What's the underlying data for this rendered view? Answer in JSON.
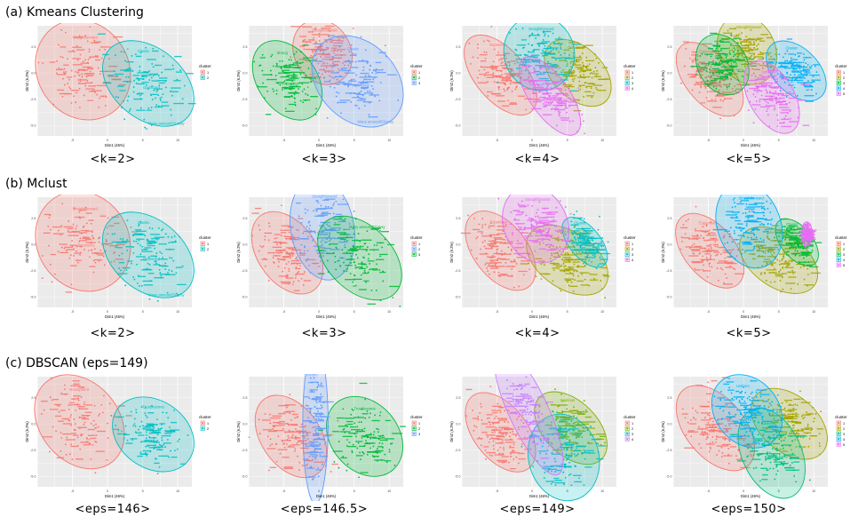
{
  "sections": [
    {
      "title": "(a) Kmeans Clustering",
      "panels": [
        {
          "caption": "<k=2>",
          "legend": [
            "1",
            "2"
          ]
        },
        {
          "caption": "<k=3>",
          "legend": [
            "1",
            "2",
            "3"
          ]
        },
        {
          "caption": "<k=4>",
          "legend": [
            "1",
            "2",
            "3",
            "4"
          ]
        },
        {
          "caption": "<k=5>",
          "legend": [
            "1",
            "2",
            "3",
            "4",
            "5"
          ]
        }
      ]
    },
    {
      "title": "(b) Mclust",
      "panels": [
        {
          "caption": "<k=2>",
          "legend": [
            "1",
            "2"
          ]
        },
        {
          "caption": "<k=3>",
          "legend": [
            "1",
            "2",
            "3"
          ]
        },
        {
          "caption": "<k=4>",
          "legend": [
            "1",
            "2",
            "3",
            "4"
          ]
        },
        {
          "caption": "<k=5>",
          "legend": [
            "1",
            "2",
            "3",
            "4",
            "5"
          ]
        }
      ]
    },
    {
      "title": "(c) DBSCAN (eps=149)",
      "panels": [
        {
          "caption": "<eps=146>",
          "legend": [
            "1",
            "2"
          ]
        },
        {
          "caption": "<eps=146.5>",
          "legend": [
            "1",
            "2",
            "3"
          ]
        },
        {
          "caption": "<eps=149>",
          "legend": [
            "1",
            "2",
            "3",
            "4"
          ]
        },
        {
          "caption": "<eps=150>",
          "legend": [
            "1",
            "2",
            "3",
            "4",
            "5"
          ]
        }
      ]
    }
  ],
  "common": {
    "xlabel": "Dim1 (46%)",
    "ylabel": "Dim2 (6.2%)",
    "legend_title": "cluster",
    "xticks": [
      "-5",
      "0",
      "5",
      "10"
    ],
    "yticks": [
      "2.5",
      "0.0",
      "-2.5",
      "-5.0"
    ],
    "xlim": [
      -10,
      12
    ],
    "ylim": [
      -6,
      4.5
    ],
    "grid": true,
    "legend_position": "right"
  },
  "colors": [
    "#f8766d",
    "#7cae00",
    "#00bfc4",
    "#c77cff",
    "#619cff",
    "#00ba38",
    "#a3a500",
    "#00b0f6",
    "#e76bf3"
  ],
  "chart_data": {
    "type": "scatter",
    "note_labels": [
      "Straightforward",
      "Expensive",
      "Classic",
      "Many amount/Clumsy",
      "Optimized",
      "Uniform",
      "Strong",
      "Atmospheric",
      "Troublesome",
      "Cautious"
    ],
    "panels": [
      {
        "section": 0,
        "k": 2,
        "clusters": [
          {
            "id": "1",
            "color": "#f8766d",
            "cx": -3.5,
            "cy": 0.3,
            "rx": 6.5,
            "ry": 2.6,
            "angle": 33,
            "labels": [
              "Straightforward",
              "Expensive"
            ]
          },
          {
            "id": "2",
            "color": "#00bfc4",
            "cx": 5.8,
            "cy": -1.0,
            "rx": 5.0,
            "ry": 2.6,
            "angle": 50,
            "labels": [
              "Classic",
              "Optimized",
              "Many amount/Clumsy"
            ]
          }
        ]
      },
      {
        "section": 0,
        "k": 3,
        "clusters": [
          {
            "id": "1",
            "color": "#f8766d",
            "cx": 0.5,
            "cy": 2.0,
            "rx": 4.0,
            "ry": 1.7,
            "angle": 30,
            "labels": [
              "Straightforward"
            ]
          },
          {
            "id": "2",
            "color": "#00ba38",
            "cx": -4.5,
            "cy": -0.7,
            "rx": 4.2,
            "ry": 2.2,
            "angle": 35,
            "labels": [
              "Strong",
              "Expensive"
            ]
          },
          {
            "id": "3",
            "color": "#619cff",
            "cx": 5.5,
            "cy": -0.8,
            "rx": 5.5,
            "ry": 2.6,
            "angle": 45,
            "labels": [
              "Classic",
              "Optimized",
              "Many amount/Clumsy"
            ]
          }
        ]
      },
      {
        "section": 0,
        "k": 4,
        "clusters": [
          {
            "id": "1",
            "color": "#f8766d",
            "cx": -4.5,
            "cy": -0.2,
            "rx": 3.6,
            "ry": 2.4,
            "angle": 40,
            "labels": [
              "Expensive"
            ]
          },
          {
            "id": "2",
            "color": "#a3a500",
            "cx": 6.5,
            "cy": 0.0,
            "rx": 3.6,
            "ry": 2.0,
            "angle": 45,
            "labels": [
              "Classic"
            ]
          },
          {
            "id": "3",
            "color": "#00bfc4",
            "cx": 1.0,
            "cy": 1.9,
            "rx": 5.0,
            "ry": 1.9,
            "angle": 20,
            "labels": [
              "Straightforward"
            ]
          },
          {
            "id": "4",
            "color": "#e76bf3",
            "cx": 2.5,
            "cy": -2.2,
            "rx": 2.8,
            "ry": 2.3,
            "angle": 35,
            "labels": [
              "Optimized",
              "Many amount/Clumsy"
            ]
          }
        ]
      },
      {
        "section": 0,
        "k": 5,
        "clusters": [
          {
            "id": "1",
            "color": "#f8766d",
            "cx": -4.8,
            "cy": -0.6,
            "rx": 3.4,
            "ry": 2.2,
            "angle": 40,
            "labels": [
              "Expensive"
            ]
          },
          {
            "id": "2",
            "color": "#a3a500",
            "cx": 0.5,
            "cy": 2.2,
            "rx": 4.0,
            "ry": 1.8,
            "angle": 25,
            "labels": [
              "Straightforward"
            ]
          },
          {
            "id": "3",
            "color": "#00ba38",
            "cx": -3.0,
            "cy": 0.8,
            "rx": 3.5,
            "ry": 1.6,
            "angle": 30,
            "labels": []
          },
          {
            "id": "4",
            "color": "#00b0f6",
            "cx": 7.5,
            "cy": 0.2,
            "rx": 3.2,
            "ry": 1.8,
            "angle": 45,
            "labels": [
              "Classic"
            ]
          },
          {
            "id": "5",
            "color": "#e76bf3",
            "cx": 4.0,
            "cy": -2.3,
            "rx": 3.2,
            "ry": 2.0,
            "angle": 30,
            "labels": [
              "Optimized"
            ]
          }
        ]
      },
      {
        "section": 1,
        "k": 2,
        "clusters": [
          {
            "id": "1",
            "color": "#f8766d",
            "cx": -3.5,
            "cy": 0.3,
            "rx": 6.5,
            "ry": 2.6,
            "angle": 33,
            "labels": [
              "Straightforward",
              "Expensive"
            ]
          },
          {
            "id": "2",
            "color": "#00bfc4",
            "cx": 5.8,
            "cy": -1.0,
            "rx": 5.0,
            "ry": 2.6,
            "angle": 50,
            "labels": [
              "Classic",
              "Optimized",
              "Many amount/Clumsy"
            ]
          }
        ]
      },
      {
        "section": 1,
        "k": 3,
        "clusters": [
          {
            "id": "1",
            "color": "#f8766d",
            "cx": -4.5,
            "cy": -0.8,
            "rx": 4.2,
            "ry": 2.3,
            "angle": 35,
            "labels": []
          },
          {
            "id": "2",
            "color": "#619cff",
            "cx": 0.5,
            "cy": 1.5,
            "rx": 4.5,
            "ry": 2.6,
            "angle": 10,
            "labels": [
              "Straightforward",
              "Uniform"
            ]
          },
          {
            "id": "3",
            "color": "#00ba38",
            "cx": 5.8,
            "cy": -1.3,
            "rx": 4.6,
            "ry": 2.5,
            "angle": 45,
            "labels": [
              "Many amount/Clumsy"
            ]
          }
        ]
      },
      {
        "section": 1,
        "k": 4,
        "clusters": [
          {
            "id": "1",
            "color": "#f8766d",
            "cx": -4.5,
            "cy": -0.6,
            "rx": 3.8,
            "ry": 2.3,
            "angle": 38,
            "labels": [
              "Expensive"
            ]
          },
          {
            "id": "2",
            "color": "#a3a500",
            "cx": 5.0,
            "cy": -1.5,
            "rx": 4.0,
            "ry": 2.3,
            "angle": 55,
            "labels": [
              "Many amount/Clumsy"
            ]
          },
          {
            "id": "3",
            "color": "#00bfc4",
            "cx": 7.5,
            "cy": 0.2,
            "rx": 2.2,
            "ry": 1.5,
            "angle": 40,
            "labels": [
              "Classic"
            ]
          },
          {
            "id": "4",
            "color": "#e76bf3",
            "cx": 0.5,
            "cy": 1.9,
            "rx": 4.5,
            "ry": 2.0,
            "angle": 25,
            "labels": [
              "Straightforward"
            ]
          }
        ]
      },
      {
        "section": 1,
        "k": 5,
        "clusters": [
          {
            "id": "1",
            "color": "#f8766d",
            "cx": -4.8,
            "cy": -0.6,
            "rx": 3.6,
            "ry": 2.2,
            "angle": 40,
            "labels": [
              "Expensive"
            ]
          },
          {
            "id": "2",
            "color": "#a3a500",
            "cx": 5.0,
            "cy": -1.5,
            "rx": 3.8,
            "ry": 2.2,
            "angle": 55,
            "labels": [
              "Many amount/Clumsy"
            ]
          },
          {
            "id": "3",
            "color": "#00ba38",
            "cx": 7.6,
            "cy": 0.2,
            "rx": 2.2,
            "ry": 1.4,
            "angle": 40,
            "labels": [
              "Classic"
            ]
          },
          {
            "id": "4",
            "color": "#00b0f6",
            "cx": 0.8,
            "cy": 1.8,
            "rx": 4.5,
            "ry": 2.2,
            "angle": 20,
            "labels": [
              "Straightforward"
            ]
          },
          {
            "id": "5",
            "color": "#e76bf3",
            "cx": 9.0,
            "cy": 1.0,
            "rx": 0.8,
            "ry": 0.6,
            "angle": 0,
            "labels": []
          }
        ]
      },
      {
        "section": 2,
        "k": 2,
        "clusters": [
          {
            "id": "1",
            "color": "#f8766d",
            "cx": -4.0,
            "cy": 0.2,
            "rx": 5.6,
            "ry": 2.6,
            "angle": 40,
            "labels": [
              "Atmospheric"
            ]
          },
          {
            "id": "2",
            "color": "#00bfc4",
            "cx": 6.5,
            "cy": -1.0,
            "rx": 4.8,
            "ry": 2.2,
            "angle": 55,
            "labels": [
              "Troublesome"
            ]
          }
        ]
      },
      {
        "section": 2,
        "k": 3,
        "clusters": [
          {
            "id": "1",
            "color": "#f8766d",
            "cx": -4.0,
            "cy": -1.2,
            "rx": 4.2,
            "ry": 2.3,
            "angle": 35,
            "labels": []
          },
          {
            "id": "2",
            "color": "#00ba38",
            "cx": 6.5,
            "cy": -1.2,
            "rx": 4.8,
            "ry": 2.2,
            "angle": 40,
            "labels": [
              "Troublesome"
            ]
          },
          {
            "id": "3",
            "color": "#619cff",
            "cx": -0.5,
            "cy": 0.0,
            "rx": 1.8,
            "ry": 4.0,
            "angle": 0,
            "labels": [
              "Uniform"
            ]
          }
        ]
      },
      {
        "section": 2,
        "k": 4,
        "clusters": [
          {
            "id": "1",
            "color": "#f8766d",
            "cx": -4.5,
            "cy": -0.8,
            "rx": 3.8,
            "ry": 2.3,
            "angle": 38,
            "labels": []
          },
          {
            "id": "2",
            "color": "#7cae00",
            "cx": 5.5,
            "cy": -0.4,
            "rx": 3.8,
            "ry": 2.2,
            "angle": 45,
            "labels": [
              "Cautious"
            ]
          },
          {
            "id": "3",
            "color": "#00bfc4",
            "cx": 4.5,
            "cy": -3.2,
            "rx": 5.0,
            "ry": 2.2,
            "angle": 15,
            "labels": [
              "Troublesome"
            ]
          },
          {
            "id": "4",
            "color": "#c77cff",
            "cx": -0.5,
            "cy": 1.2,
            "rx": 2.8,
            "ry": 3.5,
            "angle": 25,
            "labels": [
              "Uniform"
            ]
          }
        ]
      },
      {
        "section": 2,
        "k": 5,
        "clusters": [
          {
            "id": "1",
            "color": "#f8766d",
            "cx": -4.0,
            "cy": -0.4,
            "rx": 4.2,
            "ry": 2.5,
            "angle": 40,
            "labels": []
          },
          {
            "id": "2",
            "color": "#a3a500",
            "cx": 6.5,
            "cy": 0.0,
            "rx": 4.0,
            "ry": 2.2,
            "angle": 50,
            "labels": []
          },
          {
            "id": "3",
            "color": "#00bf7d",
            "cx": 4.0,
            "cy": -2.8,
            "rx": 4.2,
            "ry": 2.4,
            "angle": 25,
            "labels": [
              "Cautious",
              "Troublesome"
            ]
          },
          {
            "id": "4",
            "color": "#00b0f6",
            "cx": 0.5,
            "cy": 1.2,
            "rx": 4.5,
            "ry": 2.0,
            "angle": 40,
            "labels": [
              "Uniform"
            ]
          },
          {
            "id": "5",
            "color": "#e76bf3",
            "cx": 0,
            "cy": 0,
            "rx": 0,
            "ry": 0,
            "angle": 0,
            "labels": []
          }
        ]
      }
    ]
  }
}
